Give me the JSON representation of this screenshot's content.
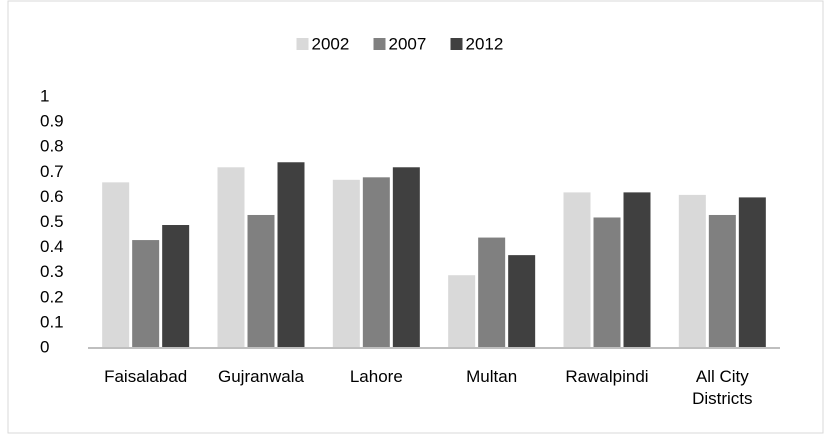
{
  "chart_data": {
    "type": "bar",
    "categories": [
      "Faisalabad",
      "Gujranwala",
      "Lahore",
      "Multan",
      "Rawalpindi",
      "All City Districts"
    ],
    "series": [
      {
        "name": "2002",
        "color": "#d9d9d9",
        "values": [
          0.66,
          0.72,
          0.67,
          0.29,
          0.62,
          0.61
        ]
      },
      {
        "name": "2007",
        "color": "#808080",
        "values": [
          0.43,
          0.53,
          0.68,
          0.44,
          0.52,
          0.53
        ]
      },
      {
        "name": "2012",
        "color": "#404040",
        "values": [
          0.49,
          0.74,
          0.72,
          0.37,
          0.62,
          0.6
        ]
      }
    ],
    "ylim": [
      0,
      1
    ],
    "yticks": [
      0,
      0.1,
      0.2,
      0.3,
      0.4,
      0.5,
      0.6,
      0.7,
      0.8,
      0.9,
      1
    ],
    "legend": "top"
  }
}
